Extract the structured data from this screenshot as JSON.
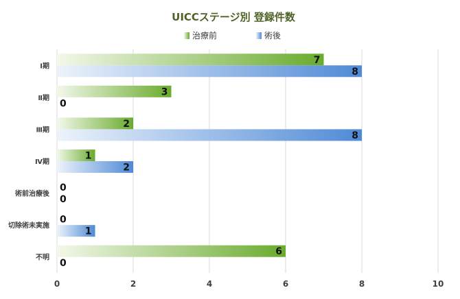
{
  "chart_data": {
    "type": "bar",
    "orientation": "horizontal",
    "title": "UICCステージ別 登録件数",
    "categories": [
      "Ⅰ期",
      "Ⅱ期",
      "Ⅲ期",
      "Ⅳ期",
      "術前治療後",
      "切除術未実施",
      "不明"
    ],
    "series": [
      {
        "name": "治療前",
        "values": [
          7,
          3,
          2,
          1,
          0,
          0,
          6
        ],
        "color": "#6aab2e",
        "color_light": "#f3f8ea"
      },
      {
        "name": "術後",
        "values": [
          8,
          0,
          8,
          2,
          0,
          1,
          0
        ],
        "color": "#4f8ad6",
        "color_light": "#edf3fb"
      }
    ],
    "xlim": [
      0,
      10
    ],
    "xticks": [
      0,
      2,
      4,
      6,
      8,
      10
    ],
    "grid": true,
    "legend": "top-center",
    "data_labels": true
  }
}
